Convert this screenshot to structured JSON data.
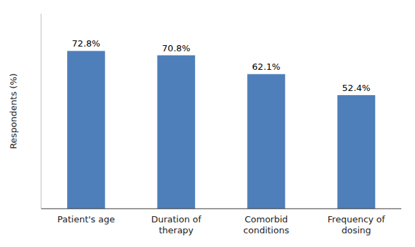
{
  "chart_data": {
    "type": "bar",
    "categories": [
      "Patient's age",
      "Duration of\ntherapy",
      "Comorbid\nconditions",
      "Frequency of\ndosing"
    ],
    "values": [
      72.8,
      70.8,
      62.1,
      52.4
    ],
    "value_labels": [
      "72.8%",
      "70.8%",
      "62.1%",
      "52.4%"
    ],
    "data_labels": true,
    "color": "#4f7fba",
    "ylabel": "Respondents (%)",
    "ylim": [
      0,
      90
    ],
    "tick_labels": "x",
    "grid": false
  }
}
